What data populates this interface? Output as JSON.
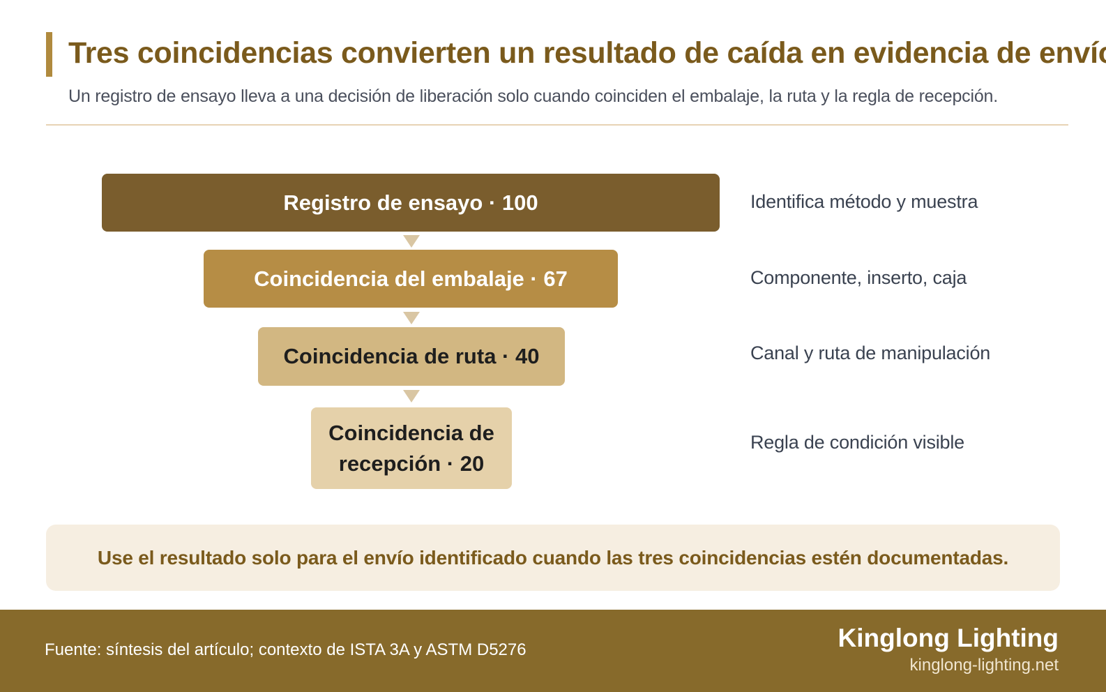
{
  "header": {
    "title": "Tres coincidencias convierten un resultado de caída en evidencia de envío",
    "subtitle": "Un registro de ensayo lleva a una decisión de liberación solo cuando coinciden el embalaje, la ruta y la regla de recepción."
  },
  "funnel": {
    "stages": [
      {
        "label": "Registro de ensayo · 100",
        "value": 100,
        "note": "Identifica método y muestra",
        "color": "#7a5d2d"
      },
      {
        "label": "Coincidencia del embalaje · 67",
        "value": 67,
        "note": "Componente, inserto, caja",
        "color": "#b68d45"
      },
      {
        "label": "Coincidencia de ruta · 40",
        "value": 40,
        "note": "Canal y ruta de manipulación",
        "color": "#d2b782"
      },
      {
        "label": "Coincidencia de recepción · 20",
        "value": 20,
        "note": "Regla de condición visible",
        "color": "#e5d1aa"
      }
    ]
  },
  "callout": {
    "text": "Use el resultado solo para el envío identificado cuando las tres coincidencias estén documentadas."
  },
  "footer": {
    "source": "Fuente: síntesis del artículo; contexto de ISTA 3A y ASTM D5276",
    "brand_name": "Kinglong Lighting",
    "brand_url": "kinglong-lighting.net"
  },
  "colors": {
    "accent": "#b08a3e",
    "title": "#7a5a1c",
    "footer_bg": "#876a2b",
    "callout_bg": "#f6eee1"
  }
}
